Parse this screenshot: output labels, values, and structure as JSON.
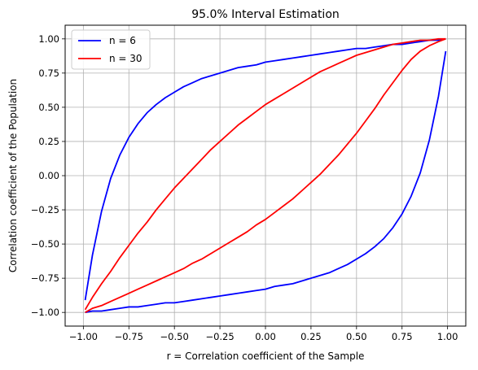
{
  "chart_data": {
    "type": "line",
    "title": "95.0% Interval Estimation",
    "xlabel": "r = Correlation coefficient of the Sample",
    "ylabel": "Correlation coefficient of the Population",
    "xlim": [
      -1.1,
      1.1
    ],
    "ylim": [
      -1.1,
      1.1
    ],
    "xticks": [
      -1.0,
      -0.75,
      -0.5,
      -0.25,
      0.0,
      0.25,
      0.5,
      0.75,
      1.0
    ],
    "xtick_labels": [
      "−1.00",
      "−0.75",
      "−0.50",
      "−0.25",
      "0.00",
      "0.25",
      "0.50",
      "0.75",
      "1.00"
    ],
    "yticks": [
      -1.0,
      -0.75,
      -0.5,
      -0.25,
      0.0,
      0.25,
      0.5,
      0.75,
      1.0
    ],
    "ytick_labels": [
      "−1.00",
      "−0.75",
      "−0.50",
      "−0.25",
      "0.00",
      "0.25",
      "0.50",
      "0.75",
      "1.00"
    ],
    "grid": true,
    "legend_position": "top-left",
    "x": [
      -0.99,
      -0.95,
      -0.9,
      -0.85,
      -0.8,
      -0.75,
      -0.7,
      -0.65,
      -0.6,
      -0.55,
      -0.5,
      -0.45,
      -0.4,
      -0.35,
      -0.3,
      -0.25,
      -0.2,
      -0.15,
      -0.1,
      -0.05,
      0.0,
      0.05,
      0.1,
      0.15,
      0.2,
      0.25,
      0.3,
      0.35,
      0.4,
      0.45,
      0.5,
      0.55,
      0.6,
      0.65,
      0.7,
      0.75,
      0.8,
      0.85,
      0.9,
      0.95,
      0.99
    ],
    "series": [
      {
        "name": "n = 6",
        "color": "#0000ff",
        "upper": [
          -0.91,
          -0.58,
          -0.26,
          -0.02,
          0.15,
          0.28,
          0.38,
          0.46,
          0.52,
          0.57,
          0.61,
          0.65,
          0.68,
          0.71,
          0.73,
          0.75,
          0.77,
          0.79,
          0.8,
          0.81,
          0.83,
          0.84,
          0.85,
          0.86,
          0.87,
          0.88,
          0.89,
          0.9,
          0.91,
          0.92,
          0.93,
          0.93,
          0.94,
          0.95,
          0.96,
          0.96,
          0.97,
          0.98,
          0.99,
          0.99,
          1.0
        ],
        "lower": [
          -1.0,
          -0.99,
          -0.99,
          -0.98,
          -0.97,
          -0.96,
          -0.96,
          -0.95,
          -0.94,
          -0.93,
          -0.93,
          -0.92,
          -0.91,
          -0.9,
          -0.89,
          -0.88,
          -0.87,
          -0.86,
          -0.85,
          -0.84,
          -0.83,
          -0.81,
          -0.8,
          -0.79,
          -0.77,
          -0.75,
          -0.73,
          -0.71,
          -0.68,
          -0.65,
          -0.61,
          -0.57,
          -0.52,
          -0.46,
          -0.38,
          -0.28,
          -0.15,
          0.02,
          0.26,
          0.58,
          0.91
        ]
      },
      {
        "name": "n = 30",
        "color": "#ff0000",
        "upper": [
          -0.98,
          -0.89,
          -0.79,
          -0.7,
          -0.6,
          -0.51,
          -0.42,
          -0.34,
          -0.25,
          -0.17,
          -0.09,
          -0.02,
          0.05,
          0.12,
          0.19,
          0.25,
          0.31,
          0.37,
          0.42,
          0.47,
          0.52,
          0.56,
          0.6,
          0.64,
          0.68,
          0.72,
          0.76,
          0.79,
          0.82,
          0.85,
          0.88,
          0.9,
          0.92,
          0.94,
          0.96,
          0.97,
          0.98,
          0.99,
          0.99,
          1.0,
          1.0
        ],
        "lower": [
          -1.0,
          -0.97,
          -0.95,
          -0.92,
          -0.89,
          -0.86,
          -0.83,
          -0.8,
          -0.77,
          -0.74,
          -0.71,
          -0.68,
          -0.64,
          -0.61,
          -0.57,
          -0.53,
          -0.49,
          -0.45,
          -0.41,
          -0.36,
          -0.32,
          -0.27,
          -0.22,
          -0.17,
          -0.11,
          -0.05,
          0.01,
          0.08,
          0.15,
          0.23,
          0.31,
          0.4,
          0.49,
          0.59,
          0.68,
          0.77,
          0.85,
          0.91,
          0.95,
          0.98,
          1.0
        ]
      }
    ]
  }
}
